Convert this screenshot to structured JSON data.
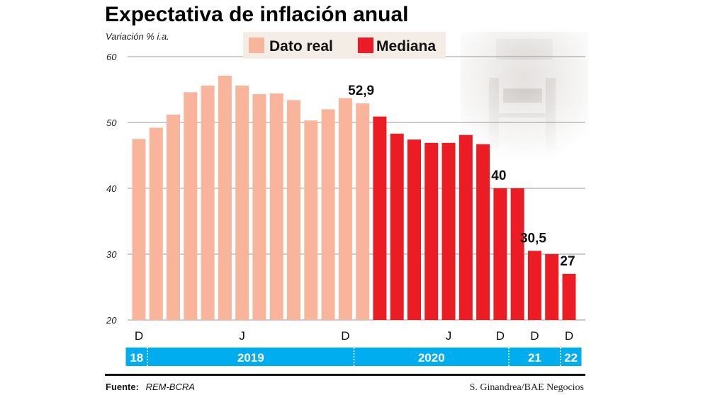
{
  "chart_data": {
    "type": "bar",
    "title": "Expectativa de inflación anual",
    "ylabel": "Variación % i.a.",
    "ylim": [
      20,
      60
    ],
    "yticks": [
      20,
      30,
      40,
      50,
      60
    ],
    "grid": true,
    "legend": {
      "placement": "top-center",
      "entries": [
        {
          "label": "Dato real",
          "color": "#f8b59b"
        },
        {
          "label": "Mediana",
          "color": "#ec1c24"
        }
      ]
    },
    "series": [
      {
        "name": "Dato real",
        "color": "#f8b59b",
        "values": [
          47.5,
          49.2,
          51.2,
          54.6,
          55.6,
          57.1,
          55.6,
          54.3,
          54.4,
          53.4,
          50.3,
          52.0,
          53.7,
          52.9
        ]
      },
      {
        "name": "Mediana",
        "color": "#ec1c24",
        "values": [
          50.9,
          48.3,
          47.4,
          46.9,
          46.9,
          48.1,
          46.7,
          40,
          40,
          30.5,
          30.0,
          27
        ]
      }
    ],
    "x_tick_labels": [
      {
        "bar": 0,
        "label": "D"
      },
      {
        "bar": 6,
        "label": "J"
      },
      {
        "bar": 12,
        "label": "D"
      },
      {
        "bar": 18,
        "label": "J"
      },
      {
        "bar": 21,
        "label": "D"
      },
      {
        "bar": 23,
        "label": "D"
      },
      {
        "bar": 25,
        "label": "D"
      }
    ],
    "year_band": [
      {
        "label": "18",
        "from": 0,
        "to": 0
      },
      {
        "label": "2019",
        "from": 1,
        "to": 12
      },
      {
        "label": "2020",
        "from": 13,
        "to": 21
      },
      {
        "label": "21",
        "from": 22,
        "to": 24
      },
      {
        "label": "22",
        "from": 25,
        "to": 25
      }
    ],
    "year_band_color": "#00aeef",
    "data_labels": [
      {
        "bar": 13,
        "label": "52,9"
      },
      {
        "bar": 21,
        "label": "40"
      },
      {
        "bar": 23,
        "label": "30,5"
      },
      {
        "bar": 25,
        "label": "27"
      }
    ]
  },
  "footer": {
    "source_label": "Fuente:",
    "source": "REM-BCRA",
    "credit": "S. Ginandrea/BAE Negocios"
  }
}
